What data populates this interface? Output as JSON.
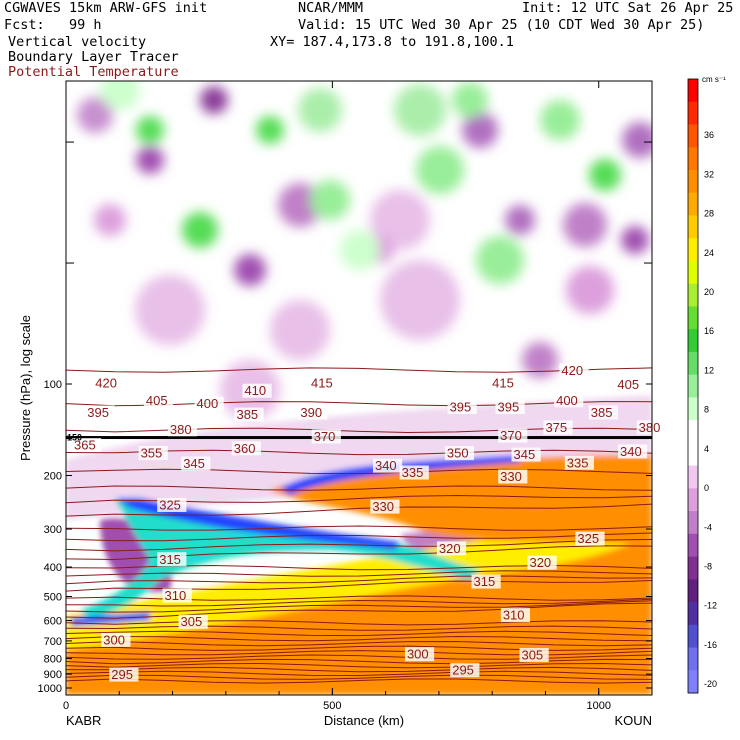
{
  "header": {
    "model": "CGWAVES 15km ARW-GFS init",
    "org": "NCAR/MMM",
    "init": "Init: 12 UTC Sat 26 Apr 25",
    "fcst": "Fcst:   99 h",
    "valid": "Valid: 15 UTC Wed 30 Apr 25 (10 CDT Wed 30 Apr 25)",
    "field1": "Vertical velocity",
    "xy": "XY= 187.4,173.8 to 191.8,100.1",
    "field2": "Boundary Layer Tracer",
    "field3": "Potential Temperature"
  },
  "chart_data": {
    "type": "heatmap",
    "title": "Vertical velocity",
    "xlabel": "Distance (km)",
    "ylabel": "Pressure (hPa), log scale",
    "x_range": [
      0,
      1100
    ],
    "x_ticks": [
      "0",
      "500",
      "1000"
    ],
    "y_ticks": [
      "100",
      "200",
      "300",
      "400",
      "500",
      "600",
      "700",
      "800",
      "900",
      "1000"
    ],
    "x_end_labels": {
      "left": "KABR",
      "right": "KOUN"
    },
    "colorbar": {
      "unit": "cm s⁻¹",
      "labels": [
        "36",
        "32",
        "28",
        "24",
        "20",
        "16",
        "12",
        "8",
        "4",
        "0",
        "-4",
        "-8",
        "-12",
        "-16",
        "-20"
      ],
      "colors": [
        "#ff0000",
        "#ff2a00",
        "#ff5500",
        "#ff7700",
        "#ff8f00",
        "#ffaa00",
        "#ffcc00",
        "#ffee00",
        "#ddff00",
        "#aaee33",
        "#66dd33",
        "#33cc33",
        "#66dd66",
        "#99ee99",
        "#ccffcc",
        "#ffffff",
        "#ffffff",
        "#f0c8f0",
        "#dda0dd",
        "#c080c8",
        "#a050b0",
        "#803090",
        "#602080",
        "#5030a0",
        "#5050d0",
        "#7070ee",
        "#8080ff"
      ]
    },
    "theta_labels": [
      {
        "v": "420",
        "km": 55,
        "p": 100
      },
      {
        "v": "415",
        "km": 460,
        "p": 100
      },
      {
        "v": "415",
        "km": 800,
        "p": 100
      },
      {
        "v": "420",
        "km": 930,
        "p": 91
      },
      {
        "v": "405",
        "km": 1035,
        "p": 101
      },
      {
        "v": "410",
        "km": 335,
        "p": 106
      },
      {
        "v": "405",
        "km": 150,
        "p": 114
      },
      {
        "v": "400",
        "km": 245,
        "p": 117
      },
      {
        "v": "395",
        "km": 40,
        "p": 125
      },
      {
        "v": "385",
        "km": 320,
        "p": 127
      },
      {
        "v": "390",
        "km": 440,
        "p": 125
      },
      {
        "v": "395",
        "km": 720,
        "p": 120
      },
      {
        "v": "395",
        "km": 810,
        "p": 120
      },
      {
        "v": "400",
        "km": 920,
        "p": 114
      },
      {
        "v": "385",
        "km": 985,
        "p": 125
      },
      {
        "v": "380",
        "km": 195,
        "p": 142
      },
      {
        "v": "375",
        "km": 900,
        "p": 140
      },
      {
        "v": "380",
        "km": 1075,
        "p": 140
      },
      {
        "v": "370",
        "km": 465,
        "p": 150
      },
      {
        "v": "370",
        "km": 815,
        "p": 149
      },
      {
        "v": "365",
        "km": 15,
        "p": 160
      },
      {
        "v": "355",
        "km": 140,
        "p": 170
      },
      {
        "v": "360",
        "km": 315,
        "p": 164
      },
      {
        "v": "350",
        "km": 715,
        "p": 170
      },
      {
        "v": "345",
        "km": 840,
        "p": 172
      },
      {
        "v": "340",
        "km": 1040,
        "p": 168
      },
      {
        "v": "345",
        "km": 220,
        "p": 184
      },
      {
        "v": "340",
        "km": 580,
        "p": 187
      },
      {
        "v": "335",
        "km": 630,
        "p": 197
      },
      {
        "v": "335",
        "km": 940,
        "p": 183
      },
      {
        "v": "330",
        "km": 815,
        "p": 203
      },
      {
        "v": "325",
        "km": 175,
        "p": 252
      },
      {
        "v": "330",
        "km": 575,
        "p": 255
      },
      {
        "v": "325",
        "km": 960,
        "p": 325
      },
      {
        "v": "320",
        "km": 700,
        "p": 350
      },
      {
        "v": "320",
        "km": 870,
        "p": 390
      },
      {
        "v": "315",
        "km": 175,
        "p": 380
      },
      {
        "v": "315",
        "km": 765,
        "p": 450
      },
      {
        "v": "310",
        "km": 185,
        "p": 500
      },
      {
        "v": "310",
        "km": 820,
        "p": 580
      },
      {
        "v": "305",
        "km": 215,
        "p": 610
      },
      {
        "v": "305",
        "km": 855,
        "p": 785
      },
      {
        "v": "300",
        "km": 70,
        "p": 700
      },
      {
        "v": "300",
        "km": 640,
        "p": 780
      },
      {
        "v": "295",
        "km": 85,
        "p": 910
      },
      {
        "v": "295",
        "km": 725,
        "p": 880
      }
    ],
    "tropopause_p": 150,
    "tropopause_label": "150"
  }
}
